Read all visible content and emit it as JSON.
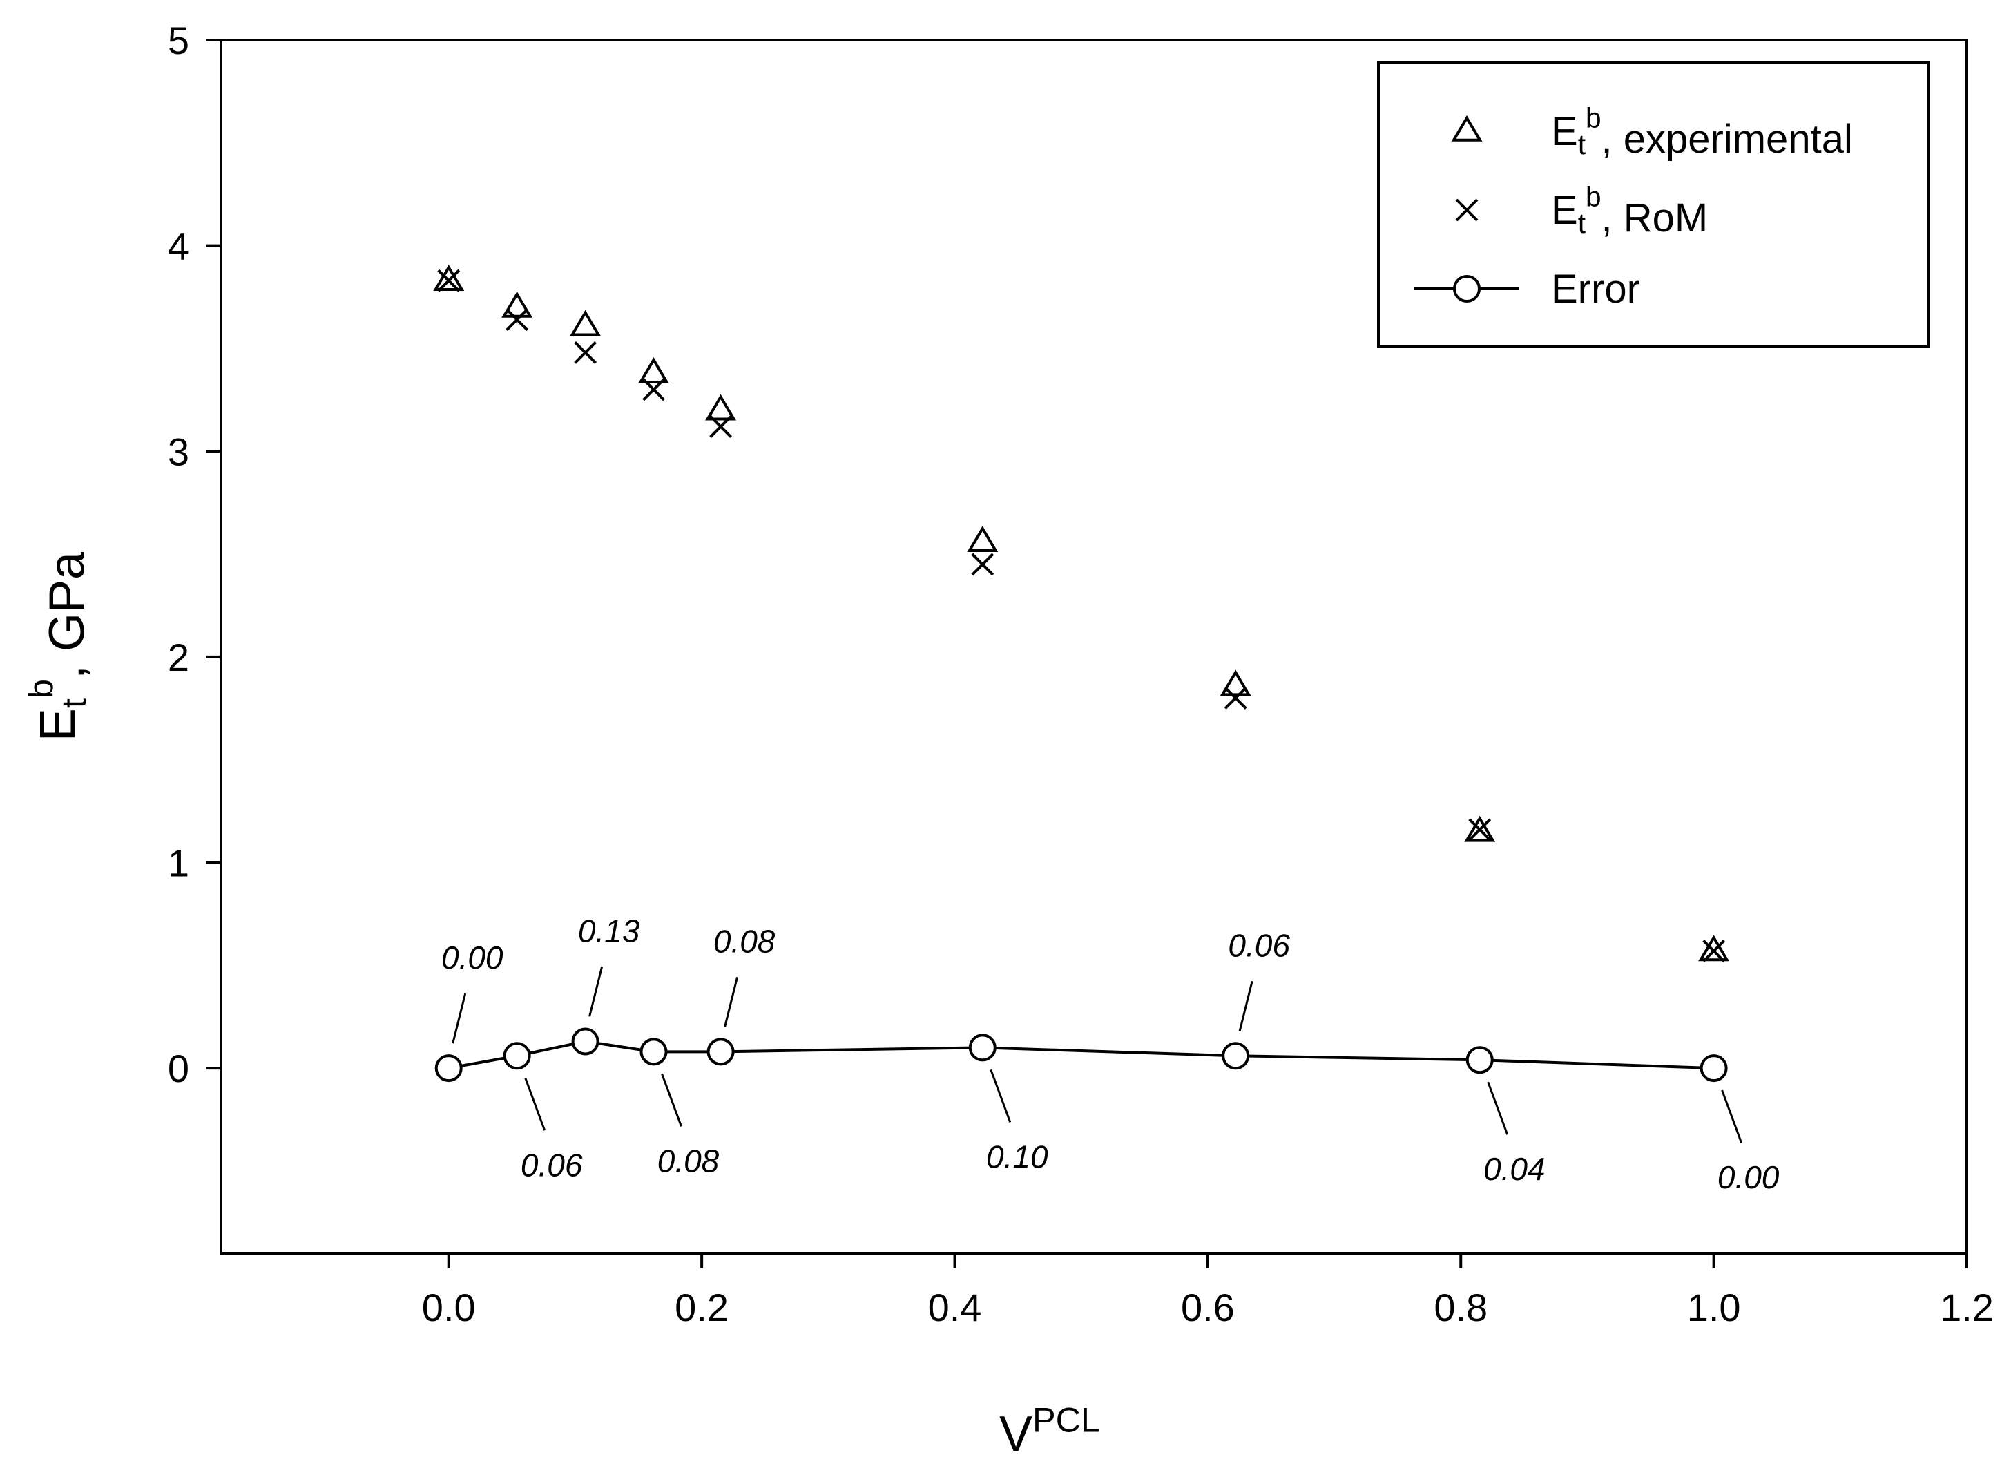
{
  "chart_data": {
    "type": "scatter",
    "xlabel": {
      "main": "V",
      "sup": "PCL"
    },
    "ylabel": {
      "main": "E",
      "sub": "t",
      "sup": "b",
      "rest": ", GPa"
    },
    "xlim": [
      -0.18,
      1.2
    ],
    "ylim": [
      -0.9,
      5
    ],
    "x_ticks": [
      "0.0",
      "0.2",
      "0.4",
      "0.6",
      "0.8",
      "1.0",
      "1.2"
    ],
    "x_tick_values": [
      0,
      0.2,
      0.4,
      0.6,
      0.8,
      1.0,
      1.2
    ],
    "y_ticks": [
      "0",
      "1",
      "2",
      "3",
      "4",
      "5"
    ],
    "y_tick_values": [
      0,
      1,
      2,
      3,
      4,
      5
    ],
    "grid": false,
    "legend_position": "top-right",
    "x": [
      0.0,
      0.054,
      0.108,
      0.162,
      0.215,
      0.422,
      0.622,
      0.815,
      1.0
    ],
    "series": [
      {
        "name": "E_t^b, experimental",
        "legend": {
          "main": "E",
          "sub": "t",
          "sup": "b",
          "rest": ", experimental"
        },
        "marker": "triangle",
        "line": false,
        "values": [
          3.83,
          3.7,
          3.61,
          3.38,
          3.2,
          2.56,
          1.86,
          1.15,
          0.57
        ]
      },
      {
        "name": "E_t^b, RoM",
        "legend": {
          "main": "E",
          "sub": "t",
          "sup": "b",
          "rest": ", RoM"
        },
        "marker": "x",
        "line": false,
        "values": [
          3.83,
          3.64,
          3.48,
          3.3,
          3.12,
          2.45,
          1.8,
          1.16,
          0.57
        ]
      },
      {
        "name": "Error",
        "legend": {
          "main": "Error",
          "sub": "",
          "sup": "",
          "rest": ""
        },
        "marker": "circle",
        "line": true,
        "values": [
          0.0,
          0.06,
          0.13,
          0.08,
          0.08,
          0.1,
          0.06,
          0.04,
          0.0
        ],
        "labels": [
          "0.00",
          "0.06",
          "0.13",
          "0.08",
          "0.08",
          "0.10",
          "0.06",
          "0.04",
          "0.00"
        ]
      }
    ]
  }
}
